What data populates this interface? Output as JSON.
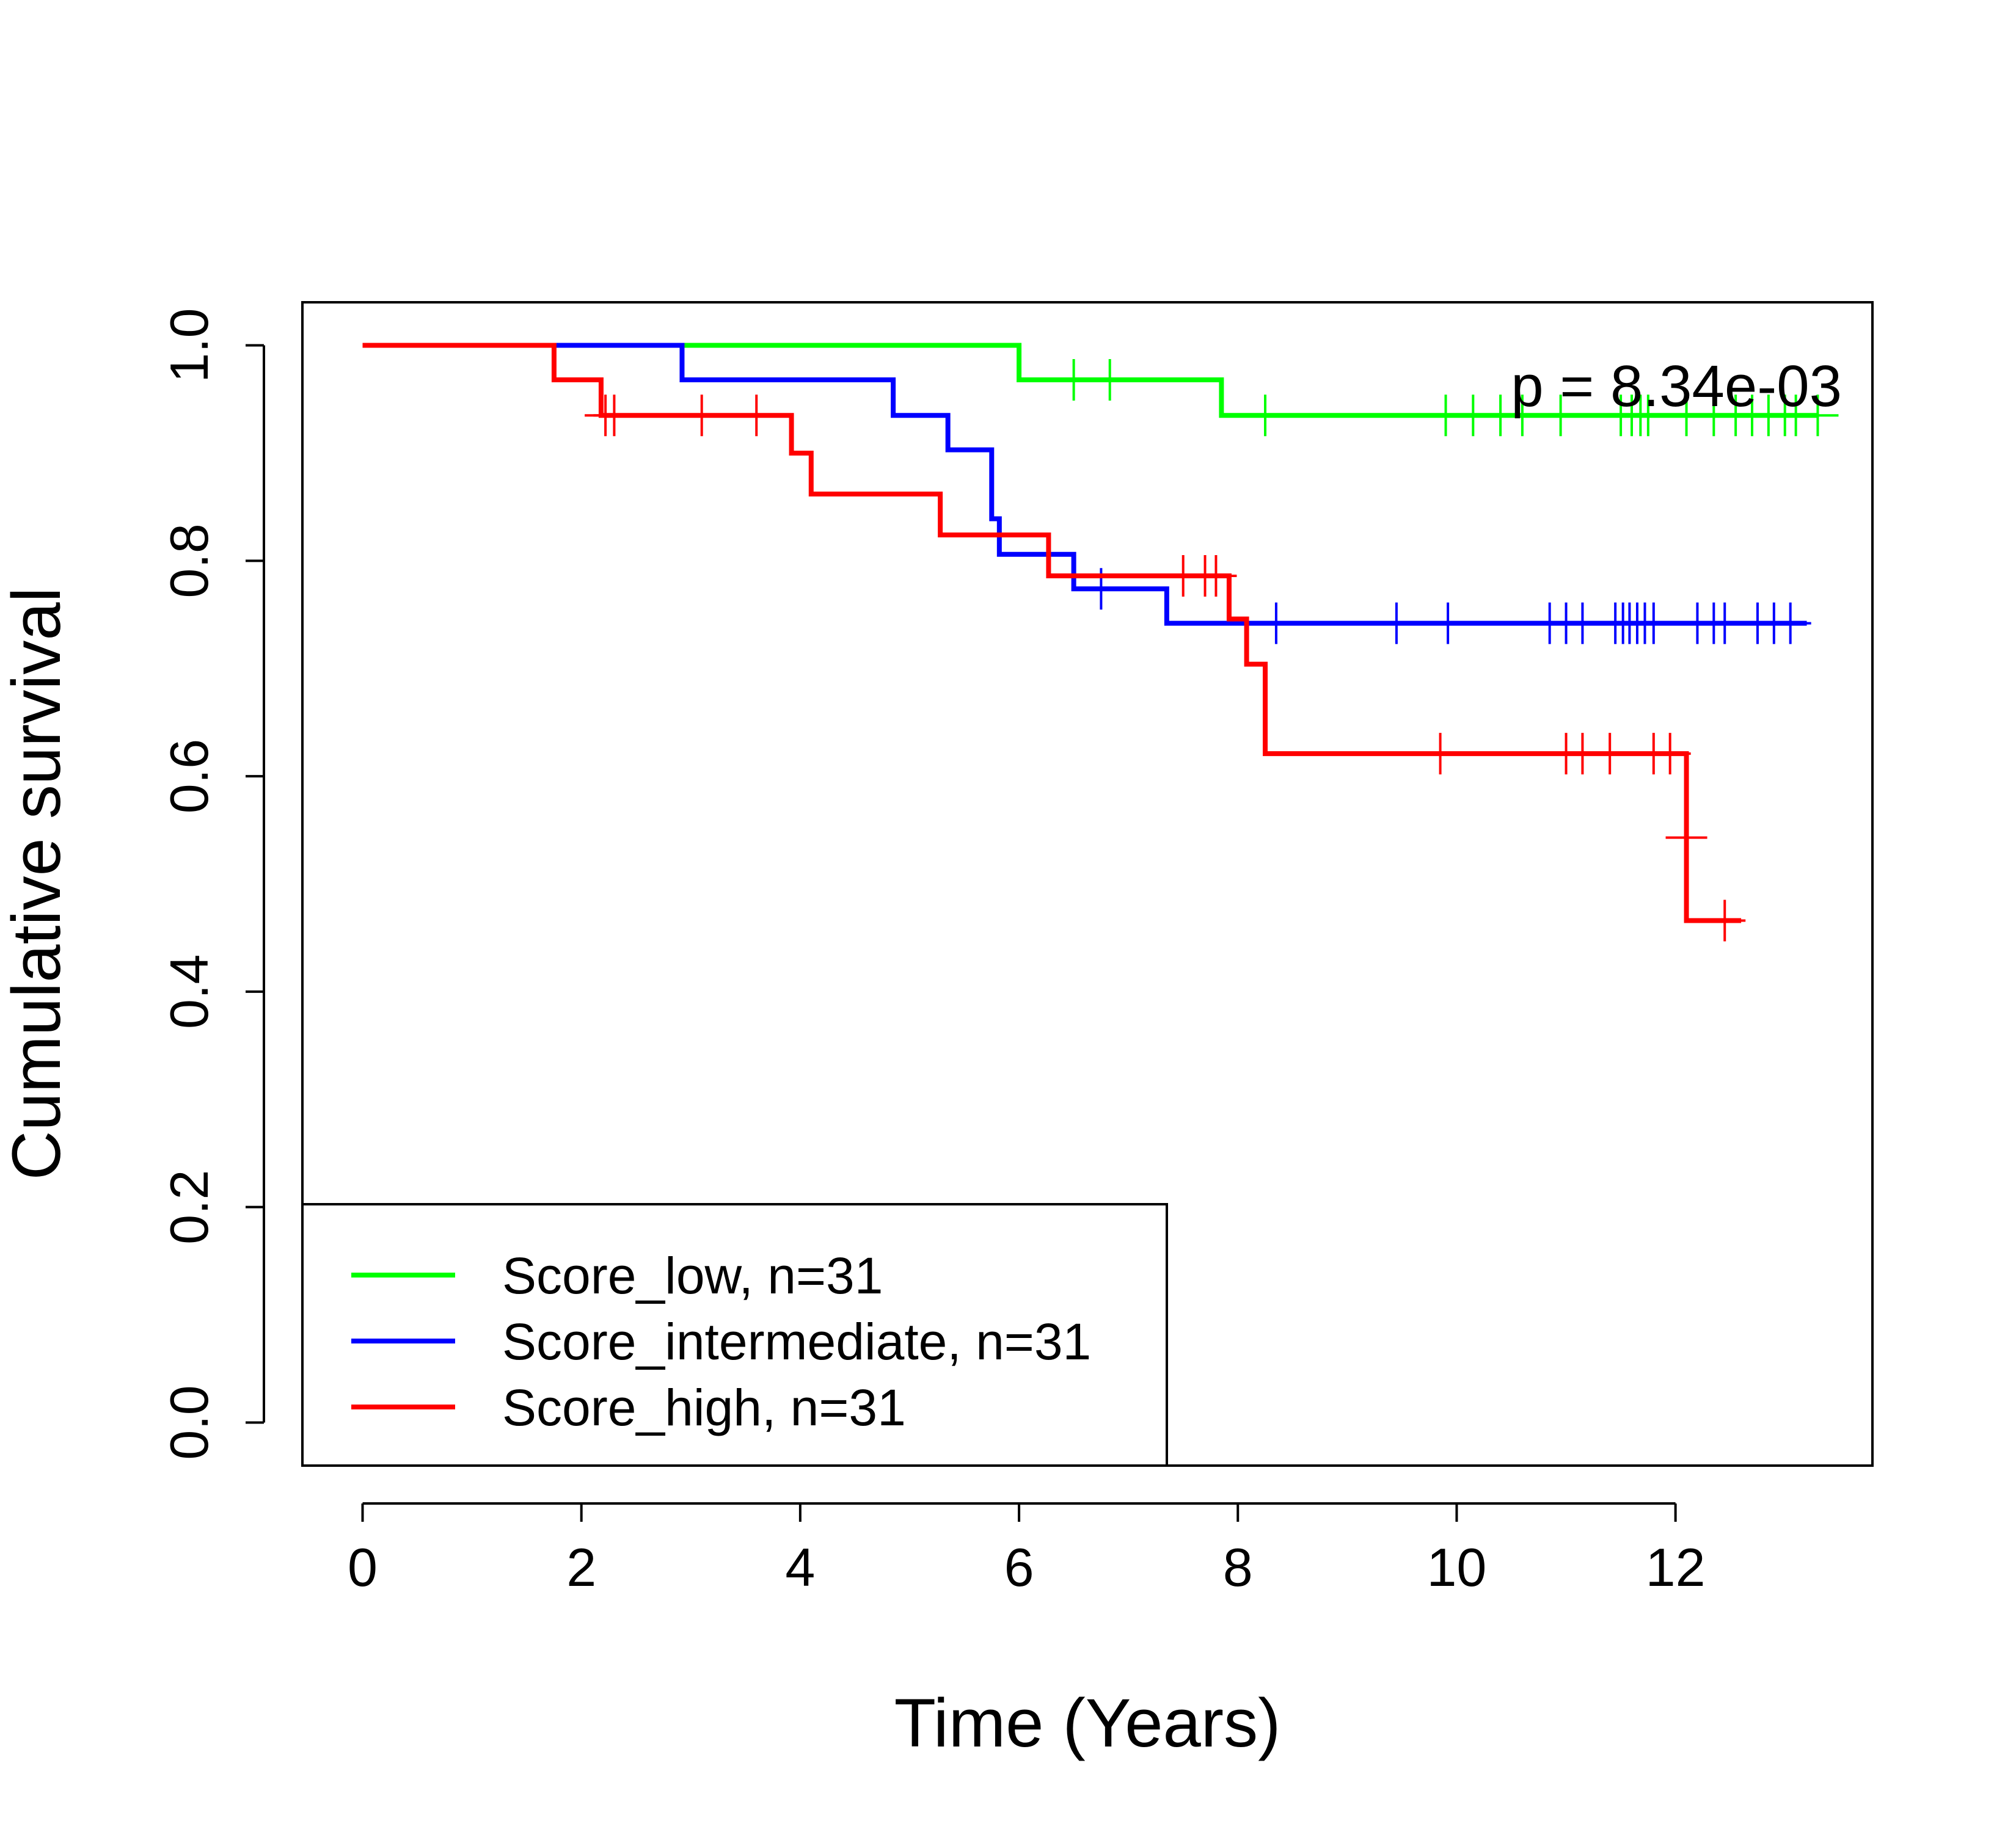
{
  "chart_data": {
    "type": "line",
    "step": true,
    "title": "",
    "xlabel": "Time (Years)",
    "ylabel": "Cumulative survival",
    "xlim": [
      -0.55,
      13.8
    ],
    "ylim": [
      -0.04,
      1.04
    ],
    "xticks": [
      0,
      2,
      4,
      6,
      8,
      10,
      12
    ],
    "xtick_labels": [
      "0",
      "2",
      "4",
      "6",
      "8",
      "10",
      "12"
    ],
    "yticks": [
      0.0,
      0.2,
      0.4,
      0.6,
      0.8,
      1.0
    ],
    "ytick_labels": [
      "0.0",
      "0.2",
      "0.4",
      "0.6",
      "0.8",
      "1.0"
    ],
    "grid": false,
    "legend_position": "bottom-left",
    "annotation": "p = 8.34e-03",
    "series": [
      {
        "name": "Score_low, n=31",
        "color": "#00ff00",
        "steps": [
          [
            0,
            1.0
          ],
          [
            6.0,
            0.968
          ],
          [
            7.85,
            0.935
          ],
          [
            13.3,
            0.935
          ]
        ],
        "censor": [
          [
            6.5,
            0.968
          ],
          [
            6.83,
            0.968
          ],
          [
            8.25,
            0.935
          ],
          [
            9.9,
            0.935
          ],
          [
            10.15,
            0.935
          ],
          [
            10.4,
            0.935
          ],
          [
            10.6,
            0.935
          ],
          [
            10.95,
            0.935
          ],
          [
            11.5,
            0.935
          ],
          [
            11.6,
            0.935
          ],
          [
            11.68,
            0.935
          ],
          [
            11.75,
            0.935
          ],
          [
            12.1,
            0.935
          ],
          [
            12.35,
            0.935
          ],
          [
            12.55,
            0.935
          ],
          [
            12.7,
            0.935
          ],
          [
            12.85,
            0.935
          ],
          [
            13.0,
            0.935
          ],
          [
            13.1,
            0.935
          ],
          [
            13.3,
            0.935
          ]
        ]
      },
      {
        "name": "Score_intermediate, n=31",
        "color": "#0000ff",
        "steps": [
          [
            0,
            1.0
          ],
          [
            2.92,
            0.968
          ],
          [
            4.85,
            0.935
          ],
          [
            5.35,
            0.903
          ],
          [
            5.75,
            0.839
          ],
          [
            5.82,
            0.806
          ],
          [
            6.5,
            0.774
          ],
          [
            7.35,
            0.742
          ],
          [
            13.2,
            0.742
          ]
        ],
        "censor": [
          [
            6.75,
            0.774
          ],
          [
            8.35,
            0.742
          ],
          [
            9.45,
            0.742
          ],
          [
            9.92,
            0.742
          ],
          [
            10.85,
            0.742
          ],
          [
            11.0,
            0.742
          ],
          [
            11.15,
            0.742
          ],
          [
            11.45,
            0.742
          ],
          [
            11.52,
            0.742
          ],
          [
            11.58,
            0.742
          ],
          [
            11.65,
            0.742
          ],
          [
            11.72,
            0.742
          ],
          [
            11.8,
            0.742
          ],
          [
            12.2,
            0.742
          ],
          [
            12.35,
            0.742
          ],
          [
            12.45,
            0.742
          ],
          [
            12.75,
            0.742
          ],
          [
            12.9,
            0.742
          ],
          [
            13.05,
            0.742
          ]
        ]
      },
      {
        "name": "Score_high, n=31",
        "color": "#ff0000",
        "steps": [
          [
            0,
            1.0
          ],
          [
            1.75,
            0.968
          ],
          [
            2.18,
            0.935
          ],
          [
            3.92,
            0.9
          ],
          [
            4.1,
            0.862
          ],
          [
            5.28,
            0.824
          ],
          [
            6.27,
            0.786
          ],
          [
            7.92,
            0.746
          ],
          [
            8.08,
            0.704
          ],
          [
            8.25,
            0.662
          ],
          [
            8.25,
            0.621
          ],
          [
            12.1,
            0.543
          ],
          [
            12.1,
            0.466
          ],
          [
            12.6,
            0.466
          ]
        ],
        "censor": [
          [
            2.22,
            0.935
          ],
          [
            2.3,
            0.935
          ],
          [
            3.1,
            0.935
          ],
          [
            3.6,
            0.935
          ],
          [
            7.5,
            0.786
          ],
          [
            7.7,
            0.786
          ],
          [
            7.8,
            0.786
          ],
          [
            9.85,
            0.621
          ],
          [
            11.0,
            0.621
          ],
          [
            11.15,
            0.621
          ],
          [
            11.4,
            0.621
          ],
          [
            11.8,
            0.621
          ],
          [
            11.95,
            0.621
          ],
          [
            12.1,
            0.543
          ],
          [
            12.45,
            0.466
          ]
        ]
      }
    ]
  }
}
